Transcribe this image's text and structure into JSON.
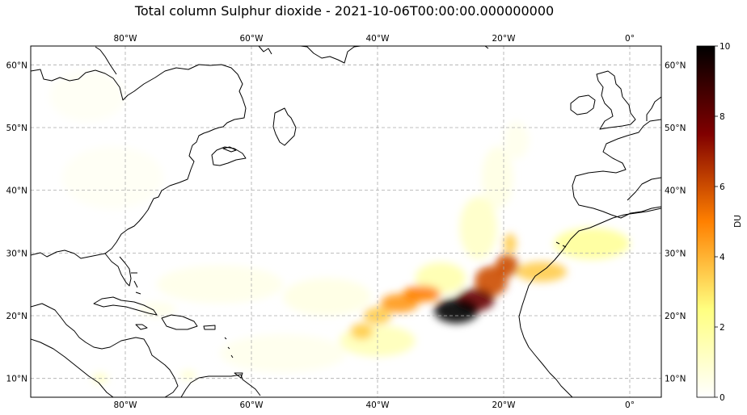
{
  "figure": {
    "title": "Total column Sulphur dioxide - 2021-10-06T00:00:00.000000000"
  },
  "map": {
    "projection": "PlateCarree",
    "lon_range": [
      -95,
      5
    ],
    "lat_range": [
      7,
      63
    ],
    "gridlines": true,
    "coastlines": true,
    "lon_ticks": [
      {
        "value": -80,
        "label": "80°W"
      },
      {
        "value": -60,
        "label": "60°W"
      },
      {
        "value": -40,
        "label": "40°W"
      },
      {
        "value": -20,
        "label": "20°W"
      },
      {
        "value": 0,
        "label": "0°"
      }
    ],
    "lat_ticks": [
      {
        "value": 60,
        "label": "60°N"
      },
      {
        "value": 50,
        "label": "50°N"
      },
      {
        "value": 40,
        "label": "40°N"
      },
      {
        "value": 30,
        "label": "30°N"
      },
      {
        "value": 20,
        "label": "20°N"
      },
      {
        "value": 10,
        "label": "10°N"
      }
    ]
  },
  "colorbar": {
    "label": "DU",
    "cmap": "afmhot_r",
    "vmin": 0,
    "vmax": 10,
    "ticks": [
      "0",
      "2",
      "4",
      "6",
      "8",
      "10"
    ],
    "tick_values": [
      0,
      2,
      4,
      6,
      8,
      10
    ]
  },
  "plume": {
    "units": "DU",
    "blobs": [
      {
        "lon": -27.5,
        "lat": 20.8,
        "rlon": 3.5,
        "rlat": 2.0,
        "value": 12
      },
      {
        "lon": -24.5,
        "lat": 22.5,
        "rlon": 3.0,
        "rlat": 1.8,
        "value": 8
      },
      {
        "lon": -22,
        "lat": 25.5,
        "rlon": 2.6,
        "rlat": 2.4,
        "value": 6
      },
      {
        "lon": -19.5,
        "lat": 28,
        "rlon": 1.8,
        "rlat": 1.8,
        "value": 6
      },
      {
        "lon": -19,
        "lat": 31.5,
        "rlon": 1.0,
        "rlat": 1.6,
        "value": 3.5
      },
      {
        "lon": -33,
        "lat": 23.5,
        "rlon": 3.0,
        "rlat": 1.3,
        "value": 5
      },
      {
        "lon": -36.5,
        "lat": 22,
        "rlon": 3.0,
        "rlat": 1.5,
        "value": 4.5
      },
      {
        "lon": -40,
        "lat": 20,
        "rlon": 2.2,
        "rlat": 1.4,
        "value": 3.5
      },
      {
        "lon": -42.5,
        "lat": 17.5,
        "rlon": 1.8,
        "rlat": 1.3,
        "value": 3.5
      },
      {
        "lon": -14,
        "lat": 27,
        "rlon": 4,
        "rlat": 1.6,
        "value": 3.5
      },
      {
        "lon": -6,
        "lat": 31.5,
        "rlon": 6,
        "rlat": 2.5,
        "value": 2
      },
      {
        "lon": -30,
        "lat": 26,
        "rlon": 4,
        "rlat": 2.5,
        "value": 1.6
      },
      {
        "lon": -24,
        "lat": 34,
        "rlon": 3,
        "rlat": 5,
        "value": 1.1
      },
      {
        "lon": -21,
        "lat": 42,
        "rlon": 2.5,
        "rlat": 5,
        "value": 0.9
      },
      {
        "lon": -18,
        "lat": 48,
        "rlon": 2,
        "rlat": 3,
        "value": 0.6
      },
      {
        "lon": -40,
        "lat": 16,
        "rlon": 6,
        "rlat": 2.5,
        "value": 1.4
      },
      {
        "lon": -48,
        "lat": 23,
        "rlon": 7,
        "rlat": 3,
        "value": 0.9
      },
      {
        "lon": -65,
        "lat": 25,
        "rlon": 10,
        "rlat": 3,
        "value": 0.7
      },
      {
        "lon": -55,
        "lat": 14,
        "rlon": 10,
        "rlat": 3,
        "value": 0.6
      },
      {
        "lon": -82,
        "lat": 42,
        "rlon": 8,
        "rlat": 5,
        "value": 0.35
      },
      {
        "lon": -86,
        "lat": 55,
        "rlon": 6,
        "rlat": 4,
        "value": 0.35
      },
      {
        "lon": -75,
        "lat": 21,
        "rlon": 3,
        "rlat": 1.2,
        "value": 0.7
      },
      {
        "lon": -84,
        "lat": 10,
        "rlon": 1.2,
        "rlat": 0.8,
        "value": 1.2
      },
      {
        "lon": -70,
        "lat": 10.5,
        "rlon": 1.2,
        "rlat": 0.7,
        "value": 1.0
      }
    ]
  }
}
